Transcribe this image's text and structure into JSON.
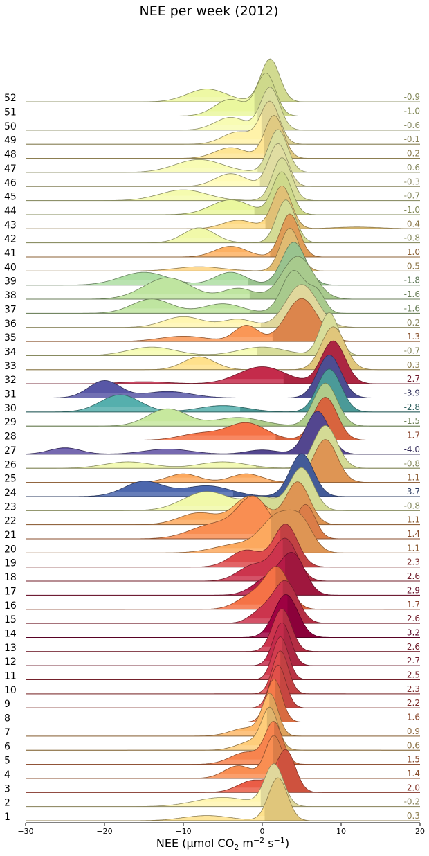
{
  "chart_data": {
    "type": "ridgeline",
    "title": "NEE per week (2012)",
    "xlabel": "NEE (μmol CO",
    "xlabel_parts": [
      "NEE (μmol CO",
      "2",
      " m",
      "−2",
      " s",
      "−1",
      ")"
    ],
    "xlim": [
      -30,
      20
    ],
    "xticks": [
      -30,
      -20,
      -10,
      0,
      10,
      20
    ],
    "xtick_labels": [
      "−30",
      "−20",
      "−10",
      "0",
      "10",
      "20"
    ],
    "grid": false,
    "colormap": "Spectral_r",
    "weeks": [
      {
        "week": "1",
        "mean": "0.3",
        "m": 0.3,
        "comps": [
          [
            2,
            1.2,
            1.0
          ],
          [
            -7,
            3,
            0.12
          ]
        ]
      },
      {
        "week": "2",
        "mean": "-0.2",
        "m": -0.2,
        "comps": [
          [
            1.5,
            1.2,
            0.9
          ],
          [
            -5,
            3.5,
            0.2
          ]
        ]
      },
      {
        "week": "3",
        "mean": "2.0",
        "m": 2.0,
        "comps": [
          [
            3,
            1.2,
            1.0
          ],
          [
            -1,
            2,
            0.3
          ]
        ]
      },
      {
        "week": "4",
        "mean": "1.4",
        "m": 1.4,
        "comps": [
          [
            1.5,
            1.1,
            1.0
          ],
          [
            -3,
            1.8,
            0.3
          ]
        ]
      },
      {
        "week": "5",
        "mean": "1.5",
        "m": 1.5,
        "comps": [
          [
            1.5,
            1.1,
            1.0
          ],
          [
            -2,
            2,
            0.3
          ]
        ]
      },
      {
        "week": "6",
        "mean": "0.6",
        "m": 0.6,
        "comps": [
          [
            1,
            1.0,
            1.0
          ],
          [
            -1,
            2,
            0.25
          ]
        ]
      },
      {
        "week": "7",
        "mean": "0.9",
        "m": 0.9,
        "comps": [
          [
            1,
            1.0,
            1.0
          ],
          [
            -2,
            2,
            0.2
          ]
        ]
      },
      {
        "week": "8",
        "mean": "1.6",
        "m": 1.6,
        "comps": [
          [
            1.5,
            1.0,
            1.0
          ]
        ]
      },
      {
        "week": "9",
        "mean": "2.2",
        "m": 2.2,
        "comps": [
          [
            2,
            1.0,
            1.0
          ]
        ]
      },
      {
        "week": "10",
        "mean": "2.3",
        "m": 2.3,
        "comps": [
          [
            2.3,
            1.0,
            1.0
          ]
        ]
      },
      {
        "week": "11",
        "mean": "2.5",
        "m": 2.5,
        "comps": [
          [
            2.3,
            1.0,
            1.0
          ]
        ]
      },
      {
        "week": "12",
        "mean": "2.7",
        "m": 2.7,
        "comps": [
          [
            2.5,
            1.1,
            1.0
          ]
        ]
      },
      {
        "week": "13",
        "mean": "2.6",
        "m": 2.6,
        "comps": [
          [
            2.5,
            1.2,
            1.0
          ]
        ]
      },
      {
        "week": "14",
        "mean": "3.2",
        "m": 3.2,
        "comps": [
          [
            3,
            1.5,
            1.0
          ]
        ]
      },
      {
        "week": "15",
        "mean": "2.6",
        "m": 2.6,
        "comps": [
          [
            3,
            1.5,
            1.0
          ],
          [
            0,
            1.5,
            0.3
          ]
        ]
      },
      {
        "week": "16",
        "mean": "1.7",
        "m": 1.7,
        "comps": [
          [
            2,
            1.5,
            1.0
          ],
          [
            -1,
            2,
            0.4
          ]
        ]
      },
      {
        "week": "17",
        "mean": "2.9",
        "m": 2.9,
        "comps": [
          [
            4,
            1.5,
            1.0
          ],
          [
            1,
            2,
            0.5
          ]
        ]
      },
      {
        "week": "18",
        "mean": "2.6",
        "m": 2.6,
        "comps": [
          [
            3,
            1.5,
            1.0
          ],
          [
            -1,
            2,
            0.4
          ]
        ]
      },
      {
        "week": "19",
        "mean": "2.3",
        "m": 2.3,
        "comps": [
          [
            3,
            1.5,
            1.0
          ],
          [
            -2,
            2,
            0.4
          ]
        ]
      },
      {
        "week": "20",
        "mean": "1.1",
        "m": 1.1,
        "comps": [
          [
            2,
            2,
            0.8
          ],
          [
            5,
            1.5,
            0.6
          ],
          [
            -3,
            3,
            0.2
          ]
        ]
      },
      {
        "week": "21",
        "mean": "1.4",
        "m": 1.4,
        "comps": [
          [
            -1,
            2,
            0.8
          ],
          [
            5.5,
            1.2,
            0.7
          ],
          [
            -6,
            3,
            0.3
          ]
        ]
      },
      {
        "week": "22",
        "mean": "1.1",
        "m": 1.1,
        "comps": [
          [
            4.5,
            1.5,
            0.9
          ],
          [
            -1.5,
            2,
            0.6
          ],
          [
            -8,
            2.5,
            0.25
          ]
        ]
      },
      {
        "week": "23",
        "mean": "-0.8",
        "m": -0.8,
        "comps": [
          [
            5,
            1.5,
            1.0
          ],
          [
            -7,
            3,
            0.45
          ],
          [
            0,
            2,
            0.3
          ]
        ]
      },
      {
        "week": "24",
        "mean": "-3.7",
        "m": -3.7,
        "comps": [
          [
            5,
            1.5,
            1.0
          ],
          [
            -15,
            2.5,
            0.35
          ],
          [
            -7,
            3,
            0.25
          ]
        ]
      },
      {
        "week": "25",
        "mean": "1.1",
        "m": 1.1,
        "comps": [
          [
            8,
            1.5,
            1.0
          ],
          [
            -10,
            2,
            0.2
          ],
          [
            -2,
            2,
            0.2
          ]
        ]
      },
      {
        "week": "26",
        "mean": "-0.8",
        "m": -0.8,
        "comps": [
          [
            8,
            1.5,
            1.0
          ],
          [
            -17,
            3,
            0.15
          ],
          [
            -5,
            3,
            0.15
          ]
        ]
      },
      {
        "week": "27",
        "mean": "-4.0",
        "m": -4.0,
        "comps": [
          [
            7,
            1.5,
            1.0
          ],
          [
            -25,
            2,
            0.15
          ],
          [
            -12,
            3,
            0.12
          ],
          [
            0,
            2,
            0.1
          ]
        ]
      },
      {
        "week": "28",
        "mean": "1.7",
        "m": 1.7,
        "comps": [
          [
            8,
            1.5,
            1.0
          ],
          [
            -2,
            2.5,
            0.4
          ],
          [
            -8,
            2.5,
            0.15
          ]
        ]
      },
      {
        "week": "29",
        "mean": "-1.5",
        "m": -1.5,
        "comps": [
          [
            8,
            1.5,
            1.0
          ],
          [
            -12,
            2.5,
            0.4
          ],
          [
            -3,
            3,
            0.2
          ]
        ]
      },
      {
        "week": "30",
        "mean": "-2.8",
        "m": -2.8,
        "comps": [
          [
            8.5,
            1.5,
            1.0
          ],
          [
            -18,
            2.5,
            0.4
          ],
          [
            -5,
            3,
            0.15
          ]
        ]
      },
      {
        "week": "31",
        "mean": "-3.9",
        "m": -3.9,
        "comps": [
          [
            8.5,
            1.5,
            1.0
          ],
          [
            -20,
            2,
            0.4
          ],
          [
            -12,
            3,
            0.15
          ]
        ]
      },
      {
        "week": "32",
        "mean": "2.7",
        "m": 2.7,
        "comps": [
          [
            9,
            1.5,
            1.0
          ],
          [
            0,
            3,
            0.4
          ],
          [
            -15,
            3,
            0.05
          ]
        ]
      },
      {
        "week": "33",
        "mean": "0.3",
        "m": 0.3,
        "comps": [
          [
            9,
            1.5,
            1.0
          ],
          [
            -8,
            2,
            0.3
          ]
        ]
      },
      {
        "week": "34",
        "mean": "-0.7",
        "m": -0.7,
        "comps": [
          [
            8.5,
            1.2,
            1.0
          ],
          [
            -14,
            3,
            0.2
          ],
          [
            0,
            3,
            0.2
          ]
        ]
      },
      {
        "week": "35",
        "mean": "1.3",
        "m": 1.3,
        "comps": [
          [
            5,
            2,
            0.8
          ],
          [
            -2,
            1.5,
            0.3
          ],
          [
            -10,
            3,
            0.1
          ]
        ]
      },
      {
        "week": "36",
        "mean": "-0.2",
        "m": -0.2,
        "comps": [
          [
            5,
            2,
            0.8
          ],
          [
            -10,
            2.5,
            0.2
          ],
          [
            -3,
            2,
            0.15
          ]
        ]
      },
      {
        "week": "37",
        "mean": "-1.6",
        "m": -1.6,
        "comps": [
          [
            4,
            1.5,
            0.9
          ],
          [
            7,
            1,
            0.4
          ],
          [
            -14,
            2.5,
            0.3
          ],
          [
            -5,
            2.5,
            0.2
          ]
        ]
      },
      {
        "week": "38",
        "mean": "-1.6",
        "m": -1.6,
        "comps": [
          [
            4.5,
            2,
            0.8
          ],
          [
            -12,
            3,
            0.4
          ],
          [
            -3,
            2,
            0.2
          ]
        ]
      },
      {
        "week": "39",
        "mean": "-1.8",
        "m": -1.8,
        "comps": [
          [
            4,
            1.5,
            1.0
          ],
          [
            -15,
            3,
            0.3
          ],
          [
            -4,
            2,
            0.3
          ]
        ]
      },
      {
        "week": "40",
        "mean": "0.5",
        "m": 0.5,
        "comps": [
          [
            3.5,
            1.2,
            1.0
          ],
          [
            -8,
            3,
            0.1
          ]
        ]
      },
      {
        "week": "41",
        "mean": "1.0",
        "m": 1.0,
        "comps": [
          [
            3.5,
            1.2,
            1.0
          ],
          [
            -4,
            2,
            0.25
          ]
        ]
      },
      {
        "week": "42",
        "mean": "-0.8",
        "m": -0.8,
        "comps": [
          [
            3,
            1.2,
            1.0
          ],
          [
            -8,
            2,
            0.35
          ]
        ]
      },
      {
        "week": "43",
        "mean": "0.4",
        "m": 0.4,
        "comps": [
          [
            2.5,
            1.2,
            1.0
          ],
          [
            -3,
            2,
            0.2
          ],
          [
            12,
            3,
            0.04
          ]
        ]
      },
      {
        "week": "44",
        "mean": "-1.0",
        "m": -1.0,
        "comps": [
          [
            2.5,
            1.2,
            1.0
          ],
          [
            -4,
            2.5,
            0.35
          ]
        ]
      },
      {
        "week": "45",
        "mean": "-0.7",
        "m": -0.7,
        "comps": [
          [
            2.5,
            1.2,
            1.0
          ],
          [
            -10,
            3,
            0.25
          ]
        ]
      },
      {
        "week": "46",
        "mean": "-0.3",
        "m": -0.3,
        "comps": [
          [
            2,
            1.2,
            1.0
          ],
          [
            -4,
            2,
            0.3
          ]
        ]
      },
      {
        "week": "47",
        "mean": "-0.6",
        "m": -0.6,
        "comps": [
          [
            2,
            1.2,
            1.0
          ],
          [
            -8,
            3,
            0.3
          ]
        ]
      },
      {
        "week": "48",
        "mean": "0.2",
        "m": 0.2,
        "comps": [
          [
            1.5,
            1.2,
            1.0
          ],
          [
            -4,
            2,
            0.25
          ]
        ]
      },
      {
        "week": "49",
        "mean": "-0.1",
        "m": -0.1,
        "comps": [
          [
            1,
            1.2,
            1.0
          ],
          [
            -3,
            2,
            0.3
          ]
        ]
      },
      {
        "week": "50",
        "mean": "-0.6",
        "m": -0.6,
        "comps": [
          [
            1,
            1.2,
            1.0
          ],
          [
            -4,
            2,
            0.3
          ]
        ]
      },
      {
        "week": "51",
        "mean": "-1.0",
        "m": -1.0,
        "comps": [
          [
            0.5,
            1.2,
            1.0
          ],
          [
            -4,
            2,
            0.4
          ]
        ]
      },
      {
        "week": "52",
        "mean": "-0.9",
        "m": -0.9,
        "comps": [
          [
            1,
            1.2,
            1.0
          ],
          [
            -7,
            2.5,
            0.3
          ]
        ]
      }
    ]
  }
}
